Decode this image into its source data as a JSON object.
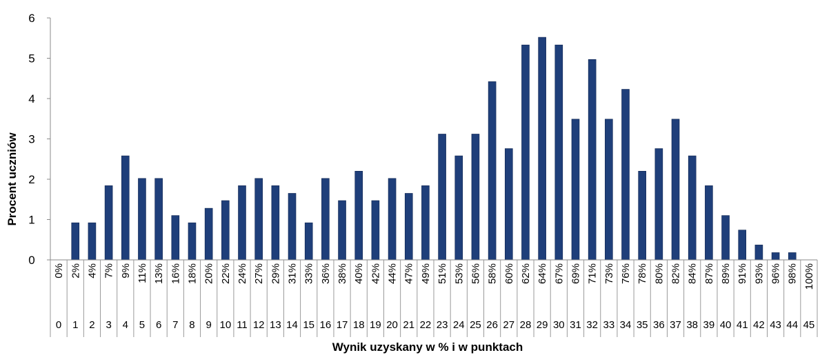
{
  "chart_data": {
    "type": "bar",
    "xlabel": "Wynik uzyskany w % i w punktach",
    "ylabel": "Procent uczniów",
    "ylim": [
      0,
      6
    ],
    "yticks": [
      "0",
      "1",
      "2",
      "3",
      "4",
      "5",
      "6"
    ],
    "grid": false,
    "bar_color": "#1f3f7a",
    "percent_labels": [
      "0%",
      "2%",
      "4%",
      "7%",
      "9%",
      "11%",
      "13%",
      "16%",
      "18%",
      "20%",
      "22%",
      "24%",
      "27%",
      "29%",
      "31%",
      "33%",
      "36%",
      "38%",
      "40%",
      "42%",
      "44%",
      "47%",
      "49%",
      "51%",
      "53%",
      "56%",
      "58%",
      "60%",
      "62%",
      "64%",
      "67%",
      "69%",
      "71%",
      "73%",
      "76%",
      "78%",
      "80%",
      "82%",
      "84%",
      "87%",
      "89%",
      "91%",
      "93%",
      "96%",
      "98%",
      "100%"
    ],
    "point_labels": [
      "0",
      "1",
      "2",
      "3",
      "4",
      "5",
      "6",
      "7",
      "8",
      "9",
      "10",
      "11",
      "12",
      "13",
      "14",
      "15",
      "16",
      "17",
      "18",
      "19",
      "20",
      "21",
      "22",
      "23",
      "24",
      "25",
      "26",
      "27",
      "28",
      "29",
      "30",
      "31",
      "32",
      "33",
      "34",
      "35",
      "36",
      "37",
      "38",
      "39",
      "40",
      "41",
      "42",
      "43",
      "44",
      "45"
    ],
    "values": [
      0,
      0.92,
      0.92,
      1.84,
      2.58,
      2.02,
      2.02,
      1.1,
      0.92,
      1.28,
      1.47,
      1.84,
      2.02,
      1.84,
      1.65,
      0.92,
      2.02,
      1.47,
      2.2,
      1.47,
      2.02,
      1.65,
      1.84,
      3.12,
      2.58,
      3.12,
      4.42,
      2.76,
      5.33,
      5.52,
      5.33,
      3.49,
      4.97,
      3.49,
      4.23,
      2.2,
      2.76,
      3.49,
      2.58,
      1.84,
      1.1,
      0.74,
      0.37,
      0.18,
      0.18,
      0
    ]
  }
}
